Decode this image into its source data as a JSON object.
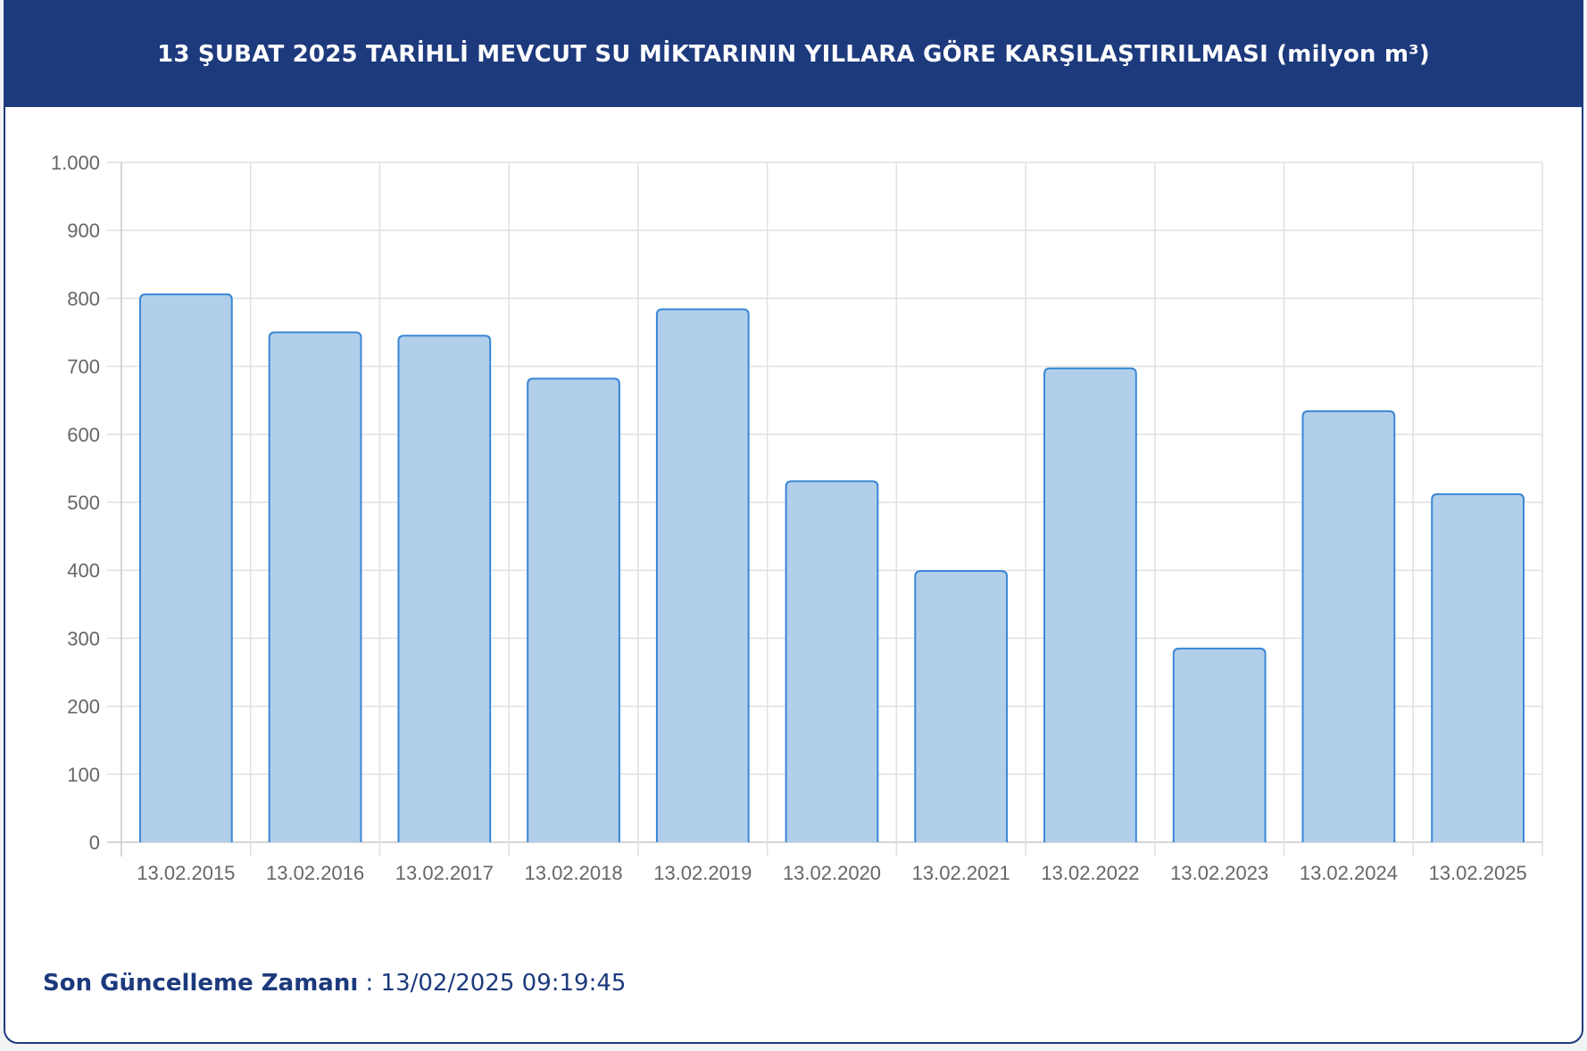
{
  "header": {
    "title": "13 ŞUBAT 2025 TARİHLİ MEVCUT SU MİKTARININ YILLARA GÖRE KARŞILAŞTIRILMASI (milyon m³)"
  },
  "footer": {
    "label": "Son Güncelleme Zamanı",
    "separator": " : ",
    "value": "13/02/2025 09:19:45"
  },
  "colors": {
    "header_bg": "#1d3a7d",
    "bar_fill": "#b1cfea",
    "bar_stroke": "#3a87d6",
    "grid": "#e0e0e0"
  },
  "chart_data": {
    "type": "bar",
    "title": "13 ŞUBAT 2025 TARİHLİ MEVCUT SU MİKTARININ YILLARA GÖRE KARŞILAŞTIRILMASI (milyon m³)",
    "xlabel": "",
    "ylabel": "",
    "categories": [
      "13.02.2015",
      "13.02.2016",
      "13.02.2017",
      "13.02.2018",
      "13.02.2019",
      "13.02.2020",
      "13.02.2021",
      "13.02.2022",
      "13.02.2023",
      "13.02.2024",
      "13.02.2025"
    ],
    "values": [
      806,
      750,
      745,
      682,
      784,
      531,
      399,
      697,
      285,
      634,
      512
    ],
    "ylim": [
      0,
      1000
    ],
    "yticks": [
      0,
      100,
      200,
      300,
      400,
      500,
      600,
      700,
      800,
      900,
      1000
    ],
    "ytick_labels": [
      "0",
      "100",
      "200",
      "300",
      "400",
      "500",
      "600",
      "700",
      "800",
      "900",
      "1.000"
    ],
    "grid": true,
    "legend": "none"
  }
}
